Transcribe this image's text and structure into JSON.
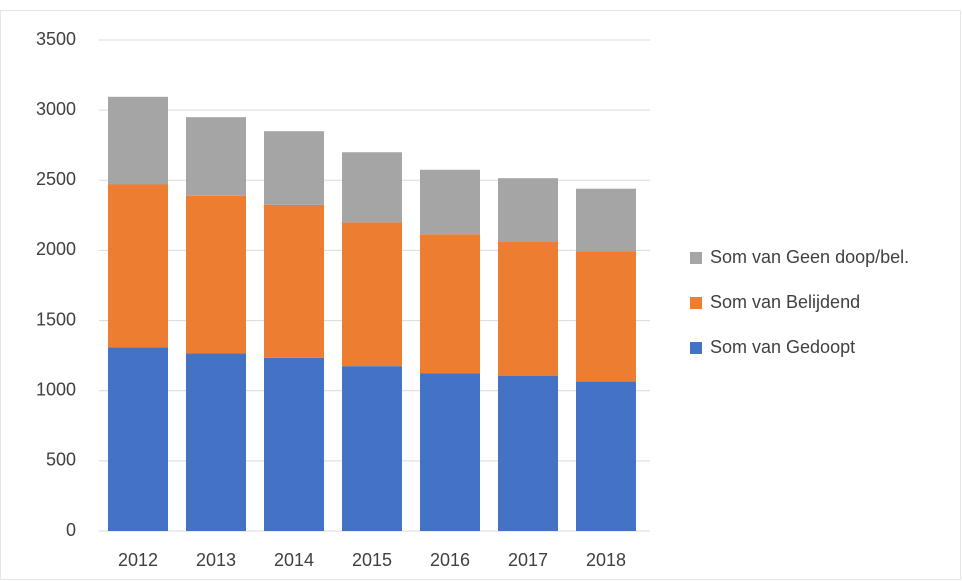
{
  "chart_data": {
    "type": "stacked_bar",
    "categories": [
      "2012",
      "2013",
      "2014",
      "2015",
      "2016",
      "2017",
      "2018"
    ],
    "series": [
      {
        "name": "Som van Gedoopt",
        "color": "#4472c4",
        "values": [
          1310,
          1265,
          1235,
          1175,
          1125,
          1105,
          1065
        ]
      },
      {
        "name": "Som van Belijdend",
        "color": "#ed7d31",
        "values": [
          1160,
          1125,
          1090,
          1025,
          990,
          955,
          930
        ]
      },
      {
        "name": "Som van Geen doop/bel.",
        "color": "#a5a5a5",
        "values": [
          625,
          560,
          525,
          500,
          460,
          455,
          445
        ]
      }
    ],
    "ylim": [
      0,
      3500
    ],
    "yticks": [
      0,
      500,
      1000,
      1500,
      2000,
      2500,
      3000,
      3500
    ],
    "grid": true,
    "legend": "right"
  }
}
